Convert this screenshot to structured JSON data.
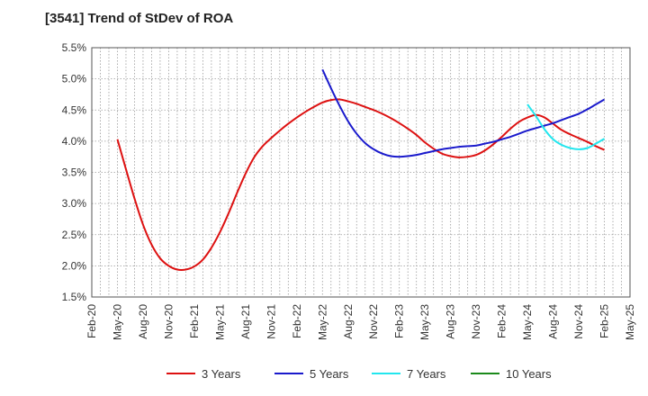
{
  "chart_data": {
    "type": "line",
    "title": "[3541]  Trend of StDev of ROA",
    "xlabel": "",
    "ylabel": "",
    "x_ticks": [
      "Feb-20",
      "May-20",
      "Aug-20",
      "Nov-20",
      "Feb-21",
      "May-21",
      "Aug-21",
      "Nov-21",
      "Feb-22",
      "May-22",
      "Aug-22",
      "Nov-22",
      "Feb-23",
      "May-23",
      "Aug-23",
      "Nov-23",
      "Feb-24",
      "May-24",
      "Aug-24",
      "Nov-24",
      "Feb-25",
      "May-25"
    ],
    "y_ticks": [
      "1.5%",
      "2.0%",
      "2.5%",
      "3.0%",
      "3.5%",
      "4.0%",
      "4.5%",
      "5.0%",
      "5.5%"
    ],
    "ylim": [
      1.5,
      5.5
    ],
    "y_unit": "%",
    "grid": true,
    "legend_position": "bottom",
    "series": [
      {
        "name": "3 Years",
        "color": "#dd1111",
        "points": [
          [
            "May-20",
            4.03
          ],
          [
            "Jun-20",
            3.55
          ],
          [
            "Jul-20",
            3.08
          ],
          [
            "Aug-20",
            2.66
          ],
          [
            "Sep-20",
            2.34
          ],
          [
            "Oct-20",
            2.12
          ],
          [
            "Nov-20",
            2.0
          ],
          [
            "Dec-20",
            1.94
          ],
          [
            "Jan-21",
            1.94
          ],
          [
            "Feb-21",
            1.99
          ],
          [
            "Mar-21",
            2.1
          ],
          [
            "Apr-21",
            2.29
          ],
          [
            "May-21",
            2.54
          ],
          [
            "Jun-21",
            2.84
          ],
          [
            "Jul-21",
            3.17
          ],
          [
            "Aug-21",
            3.48
          ],
          [
            "Sep-21",
            3.74
          ],
          [
            "Oct-21",
            3.92
          ],
          [
            "Nov-21",
            4.05
          ],
          [
            "Dec-21",
            4.17
          ],
          [
            "Jan-22",
            4.28
          ],
          [
            "Feb-22",
            4.38
          ],
          [
            "Mar-22",
            4.47
          ],
          [
            "Apr-22",
            4.55
          ],
          [
            "May-22",
            4.62
          ],
          [
            "Jun-22",
            4.66
          ],
          [
            "Jul-22",
            4.67
          ],
          [
            "Aug-22",
            4.64
          ],
          [
            "Sep-22",
            4.6
          ],
          [
            "Oct-22",
            4.55
          ],
          [
            "Nov-22",
            4.5
          ],
          [
            "Dec-22",
            4.44
          ],
          [
            "Jan-23",
            4.37
          ],
          [
            "Feb-23",
            4.29
          ],
          [
            "Mar-23",
            4.2
          ],
          [
            "Apr-23",
            4.1
          ],
          [
            "May-23",
            3.98
          ],
          [
            "Jun-23",
            3.88
          ],
          [
            "Jul-23",
            3.8
          ],
          [
            "Aug-23",
            3.76
          ],
          [
            "Sep-23",
            3.74
          ],
          [
            "Oct-23",
            3.75
          ],
          [
            "Nov-23",
            3.78
          ],
          [
            "Dec-23",
            3.85
          ],
          [
            "Jan-24",
            3.95
          ],
          [
            "Feb-24",
            4.07
          ],
          [
            "Mar-24",
            4.2
          ],
          [
            "Apr-24",
            4.31
          ],
          [
            "May-24",
            4.38
          ],
          [
            "Jun-24",
            4.42
          ],
          [
            "Jul-24",
            4.38
          ],
          [
            "Aug-24",
            4.28
          ],
          [
            "Sep-24",
            4.18
          ],
          [
            "Oct-24",
            4.11
          ],
          [
            "Nov-24",
            4.05
          ],
          [
            "Dec-24",
            3.99
          ],
          [
            "Jan-25",
            3.92
          ],
          [
            "Feb-25",
            3.86
          ]
        ]
      },
      {
        "name": "5 Years",
        "color": "#1a1acc",
        "points": [
          [
            "May-22",
            5.15
          ],
          [
            "Jun-22",
            4.85
          ],
          [
            "Jul-22",
            4.57
          ],
          [
            "Aug-22",
            4.32
          ],
          [
            "Sep-22",
            4.12
          ],
          [
            "Oct-22",
            3.97
          ],
          [
            "Nov-22",
            3.87
          ],
          [
            "Dec-22",
            3.8
          ],
          [
            "Jan-23",
            3.76
          ],
          [
            "Feb-23",
            3.75
          ],
          [
            "Mar-23",
            3.76
          ],
          [
            "Apr-23",
            3.78
          ],
          [
            "May-23",
            3.81
          ],
          [
            "Jun-23",
            3.84
          ],
          [
            "Jul-23",
            3.87
          ],
          [
            "Aug-23",
            3.89
          ],
          [
            "Sep-23",
            3.91
          ],
          [
            "Oct-23",
            3.92
          ],
          [
            "Nov-23",
            3.93
          ],
          [
            "Dec-23",
            3.96
          ],
          [
            "Jan-24",
            3.99
          ],
          [
            "Feb-24",
            4.03
          ],
          [
            "Mar-24",
            4.07
          ],
          [
            "Apr-24",
            4.12
          ],
          [
            "May-24",
            4.17
          ],
          [
            "Jun-24",
            4.21
          ],
          [
            "Jul-24",
            4.25
          ],
          [
            "Aug-24",
            4.29
          ],
          [
            "Sep-24",
            4.34
          ],
          [
            "Oct-24",
            4.39
          ],
          [
            "Nov-24",
            4.44
          ],
          [
            "Dec-24",
            4.51
          ],
          [
            "Jan-25",
            4.59
          ],
          [
            "Feb-25",
            4.67
          ]
        ]
      },
      {
        "name": "7 Years",
        "color": "#22e6ee",
        "points": [
          [
            "May-24",
            4.59
          ],
          [
            "Jun-24",
            4.4
          ],
          [
            "Jul-24",
            4.19
          ],
          [
            "Aug-24",
            4.03
          ],
          [
            "Sep-24",
            3.94
          ],
          [
            "Oct-24",
            3.89
          ],
          [
            "Nov-24",
            3.87
          ],
          [
            "Dec-24",
            3.89
          ],
          [
            "Jan-25",
            3.96
          ],
          [
            "Feb-25",
            4.04
          ]
        ]
      },
      {
        "name": "10 Years",
        "color": "#1b8a1b",
        "points": []
      }
    ]
  }
}
